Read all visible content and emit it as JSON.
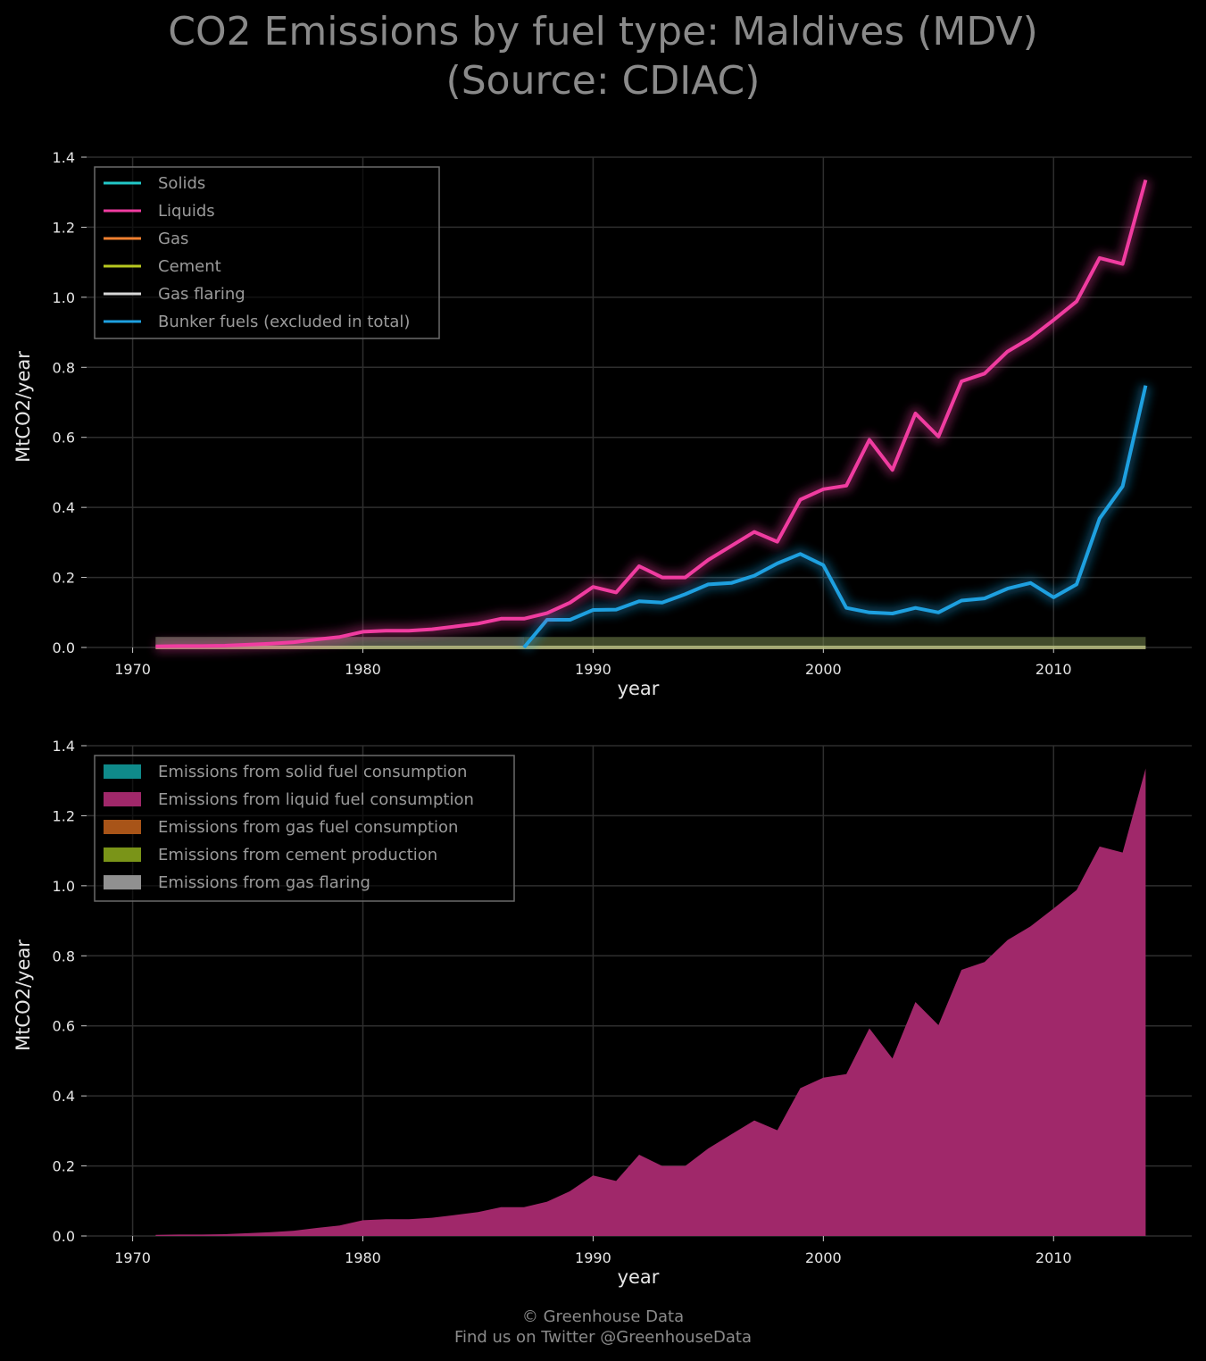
{
  "title": {
    "line1": "CO2 Emissions by fuel type: Maldives (MDV)",
    "line2": "(Source: CDIAC)"
  },
  "footer": {
    "line1": "© Greenhouse Data",
    "line2": "Find us on Twitter @GreenhouseData"
  },
  "colors": {
    "background": "#000000",
    "grid": "#2e2e2e",
    "solids": "#22c8c8",
    "liquids": "#f03ca0",
    "gas": "#f08030",
    "cement": "#b8c820",
    "gas_flaring": "#d8d8d8",
    "bunker": "#1ea0e0",
    "area_solid": "#0f8a8a",
    "area_liquid": "#a0286a",
    "area_gas": "#a85418",
    "area_cement": "#7a9418",
    "area_flaring": "#909090"
  },
  "chart_data": [
    {
      "type": "line",
      "xlabel": "year",
      "ylabel": "MtCO2/year",
      "xlim": [
        1968,
        2016
      ],
      "ylim": [
        0,
        1.4
      ],
      "xticks": [
        "1970",
        "1980",
        "1990",
        "2000",
        "2010"
      ],
      "yticks": [
        "0.0",
        "0.2",
        "0.4",
        "0.6",
        "0.8",
        "1.0",
        "1.2",
        "1.4"
      ],
      "grid": true,
      "legend_position": "top-left",
      "x": [
        1971,
        1972,
        1973,
        1974,
        1975,
        1976,
        1977,
        1978,
        1979,
        1980,
        1981,
        1982,
        1983,
        1984,
        1985,
        1986,
        1987,
        1988,
        1989,
        1990,
        1991,
        1992,
        1993,
        1994,
        1995,
        1996,
        1997,
        1998,
        1999,
        2000,
        2001,
        2002,
        2003,
        2004,
        2005,
        2006,
        2007,
        2008,
        2009,
        2010,
        2011,
        2012,
        2013,
        2014
      ],
      "series": [
        {
          "name": "Solids",
          "color_key": "solids",
          "values": [
            0,
            0,
            0,
            0,
            0,
            0,
            0,
            0,
            0,
            0,
            0,
            0,
            0,
            0,
            0,
            0,
            0,
            0,
            0,
            0,
            0,
            0,
            0,
            0,
            0,
            0,
            0,
            0,
            0,
            0,
            0,
            0,
            0,
            0,
            0,
            0,
            0,
            0,
            0,
            0,
            0,
            0,
            0,
            0
          ]
        },
        {
          "name": "Liquids",
          "color_key": "liquids",
          "values": [
            0.003,
            0.004,
            0.004,
            0.005,
            0.008,
            0.011,
            0.015,
            0.023,
            0.03,
            0.045,
            0.048,
            0.048,
            0.052,
            0.06,
            0.068,
            0.082,
            0.082,
            0.098,
            0.128,
            0.173,
            0.157,
            0.232,
            0.2,
            0.2,
            0.25,
            0.29,
            0.33,
            0.302,
            0.422,
            0.452,
            0.462,
            0.593,
            0.507,
            0.668,
            0.602,
            0.76,
            0.782,
            0.845,
            0.884,
            0.935,
            0.988,
            1.112,
            1.095,
            1.335
          ]
        },
        {
          "name": "Gas",
          "color_key": "gas",
          "values": [
            0,
            0,
            0,
            0,
            0,
            0,
            0,
            0,
            0,
            0,
            0,
            0,
            0,
            0,
            0,
            0,
            0,
            0,
            0,
            0,
            0,
            0,
            0,
            0,
            0,
            0,
            0,
            0,
            0,
            0,
            0,
            0,
            0,
            0,
            0,
            0,
            0,
            0,
            0,
            0,
            0,
            0,
            0,
            0
          ]
        },
        {
          "name": "Cement",
          "color_key": "cement",
          "values": [
            0,
            0,
            0,
            0,
            0,
            0,
            0,
            0,
            0,
            0,
            0,
            0,
            0,
            0,
            0,
            0,
            0,
            0,
            0,
            0,
            0,
            0,
            0,
            0,
            0,
            0,
            0,
            0,
            0,
            0,
            0,
            0,
            0,
            0,
            0,
            0,
            0,
            0,
            0,
            0,
            0,
            0,
            0,
            0
          ]
        },
        {
          "name": "Gas flaring",
          "color_key": "gas_flaring",
          "values": [
            0,
            0,
            0,
            0,
            0,
            0,
            0,
            0,
            0,
            0,
            0,
            0,
            0,
            0,
            0,
            0,
            0,
            0,
            0,
            0,
            0,
            0,
            0,
            0,
            0,
            0,
            0,
            0,
            0,
            0,
            0,
            0,
            0,
            0,
            0,
            0,
            0,
            0,
            0,
            0,
            0,
            0,
            0,
            0
          ]
        },
        {
          "name": "Bunker fuels (excluded in total)",
          "color_key": "bunker",
          "values": [
            0,
            0,
            0,
            0,
            0,
            0,
            0,
            0,
            0,
            0,
            0,
            0,
            0,
            0,
            0,
            0,
            0,
            0.079,
            0.079,
            0.107,
            0.108,
            0.132,
            0.128,
            0.152,
            0.18,
            0.184,
            0.205,
            0.24,
            0.267,
            0.235,
            0.113,
            0.1,
            0.097,
            0.113,
            0.1,
            0.134,
            0.14,
            0.168,
            0.184,
            0.143,
            0.18,
            0.368,
            0.46,
            0.748
          ]
        }
      ]
    },
    {
      "type": "area",
      "xlabel": "year",
      "ylabel": "MtCO2/year",
      "xlim": [
        1968,
        2016
      ],
      "ylim": [
        0,
        1.4
      ],
      "xticks": [
        "1970",
        "1980",
        "1990",
        "2000",
        "2010"
      ],
      "yticks": [
        "0.0",
        "0.2",
        "0.4",
        "0.6",
        "0.8",
        "1.0",
        "1.2",
        "1.4"
      ],
      "grid": true,
      "legend_position": "top-left",
      "stacked": true,
      "x": [
        1971,
        1972,
        1973,
        1974,
        1975,
        1976,
        1977,
        1978,
        1979,
        1980,
        1981,
        1982,
        1983,
        1984,
        1985,
        1986,
        1987,
        1988,
        1989,
        1990,
        1991,
        1992,
        1993,
        1994,
        1995,
        1996,
        1997,
        1998,
        1999,
        2000,
        2001,
        2002,
        2003,
        2004,
        2005,
        2006,
        2007,
        2008,
        2009,
        2010,
        2011,
        2012,
        2013,
        2014
      ],
      "series": [
        {
          "name": "Emissions from solid fuel consumption",
          "color_key": "area_solid",
          "values": [
            0,
            0,
            0,
            0,
            0,
            0,
            0,
            0,
            0,
            0,
            0,
            0,
            0,
            0,
            0,
            0,
            0,
            0,
            0,
            0,
            0,
            0,
            0,
            0,
            0,
            0,
            0,
            0,
            0,
            0,
            0,
            0,
            0,
            0,
            0,
            0,
            0,
            0,
            0,
            0,
            0,
            0,
            0,
            0
          ]
        },
        {
          "name": "Emissions from liquid fuel consumption",
          "color_key": "area_liquid",
          "values": [
            0.003,
            0.004,
            0.004,
            0.005,
            0.008,
            0.011,
            0.015,
            0.023,
            0.03,
            0.045,
            0.048,
            0.048,
            0.052,
            0.06,
            0.068,
            0.082,
            0.082,
            0.098,
            0.128,
            0.173,
            0.157,
            0.232,
            0.2,
            0.2,
            0.25,
            0.29,
            0.33,
            0.302,
            0.422,
            0.452,
            0.462,
            0.593,
            0.507,
            0.668,
            0.602,
            0.76,
            0.782,
            0.845,
            0.884,
            0.935,
            0.988,
            1.112,
            1.095,
            1.335
          ]
        },
        {
          "name": "Emissions from gas fuel consumption",
          "color_key": "area_gas",
          "values": [
            0,
            0,
            0,
            0,
            0,
            0,
            0,
            0,
            0,
            0,
            0,
            0,
            0,
            0,
            0,
            0,
            0,
            0,
            0,
            0,
            0,
            0,
            0,
            0,
            0,
            0,
            0,
            0,
            0,
            0,
            0,
            0,
            0,
            0,
            0,
            0,
            0,
            0,
            0,
            0,
            0,
            0,
            0,
            0
          ]
        },
        {
          "name": "Emissions from cement production",
          "color_key": "area_cement",
          "values": [
            0,
            0,
            0,
            0,
            0,
            0,
            0,
            0,
            0,
            0,
            0,
            0,
            0,
            0,
            0,
            0,
            0,
            0,
            0,
            0,
            0,
            0,
            0,
            0,
            0,
            0,
            0,
            0,
            0,
            0,
            0,
            0,
            0,
            0,
            0,
            0,
            0,
            0,
            0,
            0,
            0,
            0,
            0,
            0
          ]
        },
        {
          "name": "Emissions from gas flaring",
          "color_key": "area_flaring",
          "values": [
            0,
            0,
            0,
            0,
            0,
            0,
            0,
            0,
            0,
            0,
            0,
            0,
            0,
            0,
            0,
            0,
            0,
            0,
            0,
            0,
            0,
            0,
            0,
            0,
            0,
            0,
            0,
            0,
            0,
            0,
            0,
            0,
            0,
            0,
            0,
            0,
            0,
            0,
            0,
            0,
            0,
            0,
            0,
            0
          ]
        }
      ]
    }
  ]
}
